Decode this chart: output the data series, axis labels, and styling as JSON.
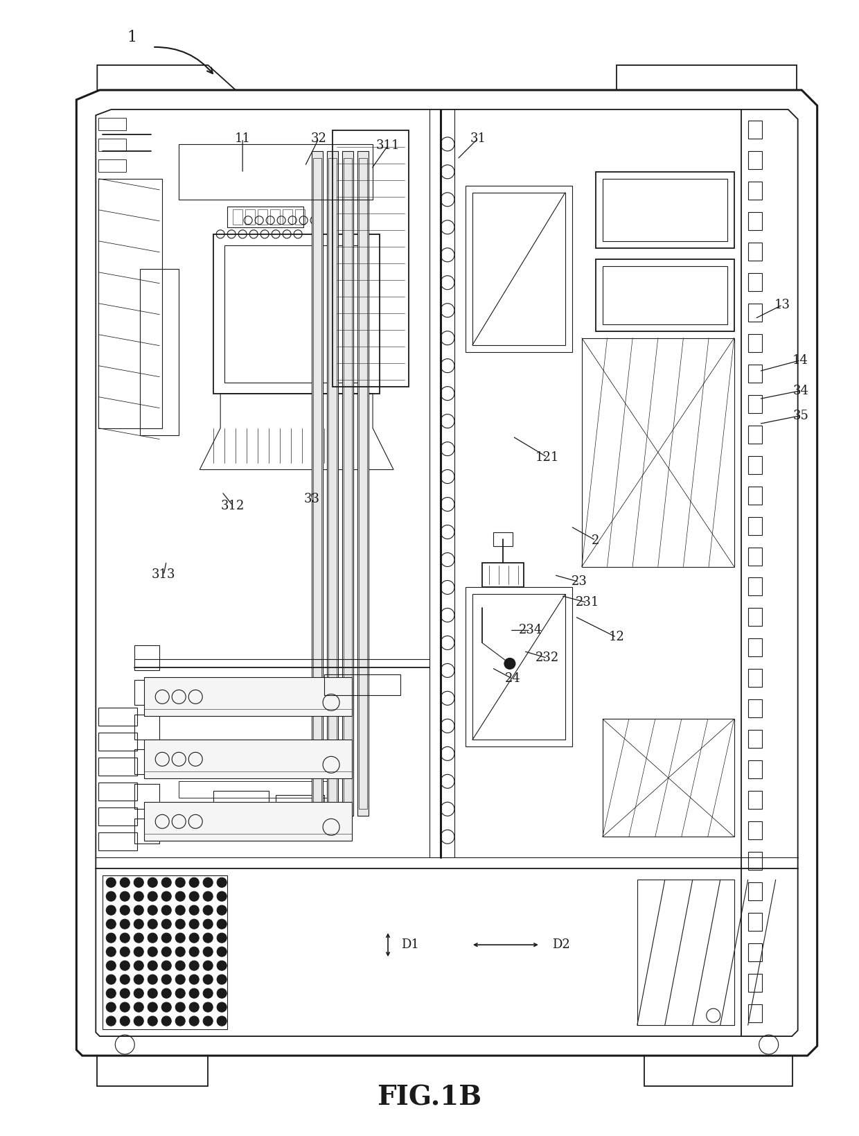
{
  "figure_label": "FIG.1B",
  "background_color": "#ffffff",
  "line_color": "#1a1a1a",
  "lw_thin": 0.8,
  "lw_med": 1.3,
  "lw_thick": 2.2,
  "fig_label_fontsize": 28,
  "ref_label_fontsize": 13,
  "note_label_fontsize": 14
}
